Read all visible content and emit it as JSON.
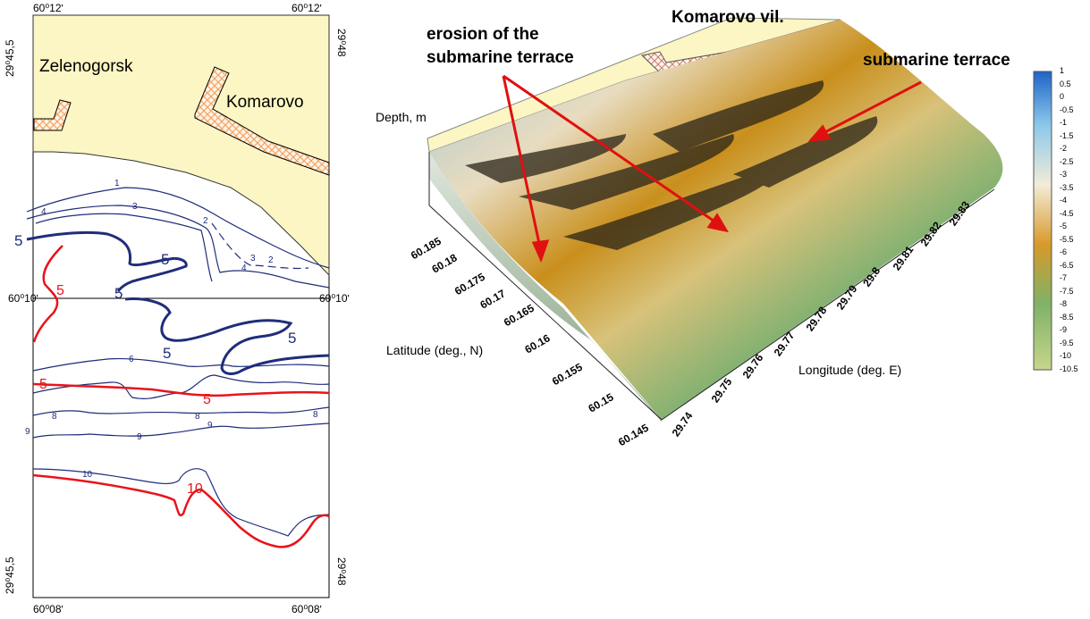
{
  "left_map": {
    "corner_labels": {
      "top_left": "60⁰12ʹ",
      "top_right": "60⁰12ʹ",
      "mid_left": "60⁰10ʹ",
      "mid_right": "60⁰10ʹ",
      "bottom_left": "60⁰08ʹ",
      "bottom_right": "60⁰08ʹ",
      "left_top_vertical": "29⁰45,5",
      "right_top_vertical": "29⁰48",
      "left_bottom_vertical": "29⁰45,5",
      "right_bottom_vertical": "29⁰48"
    },
    "place_names": [
      "Zelenogorsk",
      "Komarovo"
    ],
    "isobath_labels": [
      "1",
      "2",
      "3",
      "4",
      "5",
      "5",
      "5",
      "5",
      "5",
      "5",
      "6",
      "8",
      "8",
      "8",
      "9",
      "9",
      "10",
      "10"
    ],
    "colors": {
      "land": "#fbf6c3",
      "urban_hatch": "#f4a460",
      "isobath": "#1f2d7a",
      "highlight_isobath": "#e8141b"
    }
  },
  "relief_3d": {
    "place_label": "Komarovo vil.",
    "annotations": [
      "erosion of the submarine terrace",
      "submarine terrace"
    ],
    "annotation_color": "#e01010",
    "z_axis_label": "Depth, m",
    "lat_axis_label": "Latitude (deg., N)",
    "lon_axis_label": "Longitude (deg. E)",
    "lat_ticks": [
      "60.145",
      "60.15",
      "60.155",
      "60.16",
      "60.165",
      "60.17",
      "60.175",
      "60.18",
      "60.185"
    ],
    "lon_ticks": [
      "29.74",
      "29.75",
      "29.76",
      "29.77",
      "29.78",
      "29.79",
      "29.8",
      "29.81",
      "29.82",
      "29.83"
    ]
  },
  "depth_legend": {
    "values": [
      "1",
      "0.5",
      "0",
      "-0.5",
      "-1",
      "-1.5",
      "-2",
      "-2.5",
      "-3",
      "-3.5",
      "-4",
      "-4.5",
      "-5",
      "-5.5",
      "-6",
      "-6.5",
      "-7",
      "-7.5",
      "-8",
      "-8.5",
      "-9",
      "-9.5",
      "-10",
      "-10.5"
    ],
    "color_stops": [
      "#1e64c8",
      "#8cc8ea",
      "#f2ecd8",
      "#d79a2a",
      "#7fb267",
      "#c7d68a"
    ]
  }
}
